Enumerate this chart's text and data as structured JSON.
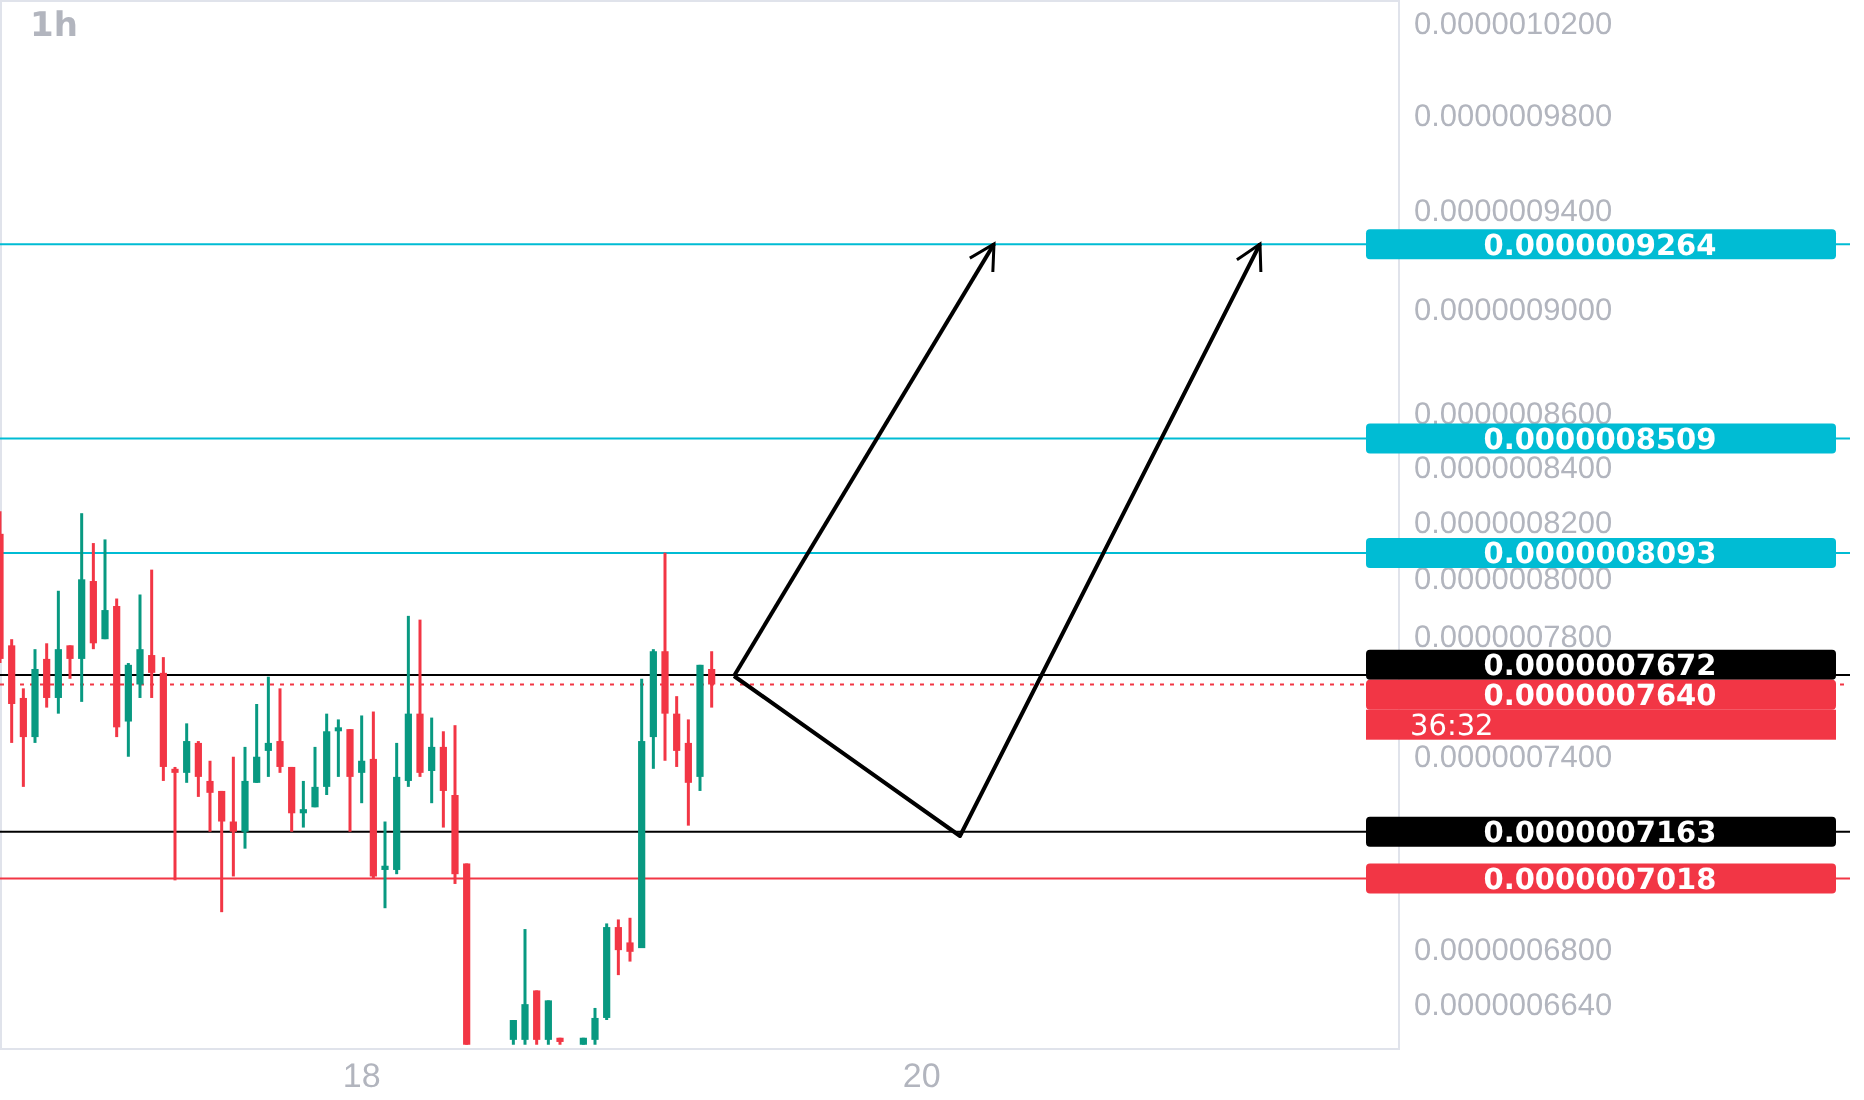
{
  "chart_data": {
    "type": "candlestick",
    "title": "1h",
    "log": true,
    "grid": false,
    "x": [
      16.7083,
      16.75,
      16.7917,
      16.8333,
      16.875,
      16.9167,
      16.9583,
      17,
      17.0417,
      17.0833,
      17.125,
      17.1667,
      17.2083,
      17.25,
      17.2917,
      17.3333,
      17.375,
      17.4167,
      17.4583,
      17.5,
      17.5417,
      17.5833,
      17.625,
      17.6667,
      17.7083,
      17.75,
      17.7917,
      17.8333,
      17.875,
      17.9167,
      17.9583,
      18,
      18.0417,
      18.0833,
      18.125,
      18.1667,
      18.2083,
      18.25,
      18.2917,
      18.3333,
      18.375,
      18.5417,
      18.5833,
      18.625,
      18.6667,
      18.7083,
      18.7917,
      18.8333,
      18.875,
      18.9167,
      18.9583,
      19,
      19.0417,
      19.0833,
      19.125,
      19.1667,
      19.2083,
      19.25
    ],
    "ohlc": [
      [
        8.161e-07,
        8.242e-07,
        7.712e-07,
        7.726e-07
      ],
      [
        7.772e-07,
        7.793e-07,
        7.447e-07,
        7.575e-07
      ],
      [
        7.595e-07,
        7.627e-07,
        7.305e-07,
        7.466e-07
      ],
      [
        7.466e-07,
        7.759e-07,
        7.447e-07,
        7.692e-07
      ],
      [
        7.726e-07,
        7.779e-07,
        7.563e-07,
        7.595e-07
      ],
      [
        7.595e-07,
        7.96e-07,
        7.543e-07,
        7.759e-07
      ],
      [
        7.772e-07,
        7.772e-07,
        7.659e-07,
        7.726e-07
      ],
      [
        7.726e-07,
        8.235e-07,
        7.582e-07,
        8e-07
      ],
      [
        7.994e-07,
        8.128e-07,
        7.759e-07,
        7.779e-07
      ],
      [
        7.793e-07,
        8.141e-07,
        7.793e-07,
        7.893e-07
      ],
      [
        7.907e-07,
        7.933e-07,
        7.466e-07,
        7.498e-07
      ],
      [
        7.517e-07,
        7.712e-07,
        7.402e-07,
        7.706e-07
      ],
      [
        7.64e-07,
        7.947e-07,
        7.595e-07,
        7.759e-07
      ],
      [
        7.739e-07,
        8.034e-07,
        7.595e-07,
        7.679e-07
      ],
      [
        7.679e-07,
        7.732e-07,
        7.324e-07,
        7.369e-07
      ],
      [
        7.363e-07,
        7.369e-07,
        7.012e-07,
        7.35e-07
      ],
      [
        7.35e-07,
        7.511e-07,
        7.318e-07,
        7.453e-07
      ],
      [
        7.447e-07,
        7.453e-07,
        7.273e-07,
        7.337e-07
      ],
      [
        7.324e-07,
        7.389e-07,
        7.163e-07,
        7.286e-07
      ],
      [
        7.292e-07,
        7.292e-07,
        6.915e-07,
        7.195e-07
      ],
      [
        7.195e-07,
        7.402e-07,
        7.024e-07,
        7.163e-07
      ],
      [
        7.163e-07,
        7.434e-07,
        7.11e-07,
        7.324e-07
      ],
      [
        7.318e-07,
        7.575e-07,
        7.318e-07,
        7.402e-07
      ],
      [
        7.421e-07,
        7.666e-07,
        7.337e-07,
        7.447e-07
      ],
      [
        7.453e-07,
        7.627e-07,
        7.35e-07,
        7.369e-07
      ],
      [
        7.369e-07,
        7.369e-07,
        7.163e-07,
        7.221e-07
      ],
      [
        7.221e-07,
        7.324e-07,
        7.176e-07,
        7.234e-07
      ],
      [
        7.24e-07,
        7.434e-07,
        7.24e-07,
        7.305e-07
      ],
      [
        7.305e-07,
        7.543e-07,
        7.279e-07,
        7.485e-07
      ],
      [
        7.485e-07,
        7.524e-07,
        7.337e-07,
        7.498e-07
      ],
      [
        7.492e-07,
        7.492e-07,
        7.163e-07,
        7.337e-07
      ],
      [
        7.35e-07,
        7.537e-07,
        7.253e-07,
        7.389e-07
      ],
      [
        7.395e-07,
        7.55e-07,
        7.018e-07,
        7.024e-07
      ],
      [
        7.044e-07,
        7.195e-07,
        6.927e-07,
        7.057e-07
      ],
      [
        7.044e-07,
        7.447e-07,
        7.031e-07,
        7.337e-07
      ],
      [
        7.324e-07,
        7.873e-07,
        7.305e-07,
        7.543e-07
      ],
      [
        7.543e-07,
        7.86e-07,
        7.337e-07,
        7.35e-07
      ],
      [
        7.356e-07,
        7.53e-07,
        7.253e-07,
        7.434e-07
      ],
      [
        7.434e-07,
        7.485e-07,
        7.176e-07,
        7.292e-07
      ],
      [
        7.279e-07,
        7.505e-07,
        7.001e-07,
        7.031e-07
      ],
      [
        7.064e-07,
        7.064e-07,
        6.525e-07,
        6.525e-07
      ],
      [
        6.539e-07,
        6.596e-07,
        6.525e-07,
        6.596e-07
      ],
      [
        6.539e-07,
        6.864e-07,
        6.525e-07,
        6.642e-07
      ],
      [
        6.682e-07,
        6.682e-07,
        6.525e-07,
        6.539e-07
      ],
      [
        6.539e-07,
        6.653e-07,
        6.525e-07,
        6.653e-07
      ],
      [
        6.545e-07,
        6.545e-07,
        6.525e-07,
        6.533e-07
      ],
      [
        6.525e-07,
        6.545e-07,
        6.525e-07,
        6.545e-07
      ],
      [
        6.539e-07,
        6.631e-07,
        6.525e-07,
        6.602e-07
      ],
      [
        6.602e-07,
        6.881e-07,
        6.596e-07,
        6.87e-07
      ],
      [
        6.87e-07,
        6.893e-07,
        6.727e-07,
        6.801e-07
      ],
      [
        6.824e-07,
        6.898e-07,
        6.767e-07,
        6.796e-07
      ],
      [
        6.807e-07,
        7.659e-07,
        6.807e-07,
        7.453e-07
      ],
      [
        7.466e-07,
        7.759e-07,
        7.363e-07,
        7.752e-07
      ],
      [
        7.752e-07,
        8.094e-07,
        7.389e-07,
        7.543e-07
      ],
      [
        7.543e-07,
        7.601e-07,
        7.369e-07,
        7.421e-07
      ],
      [
        7.447e-07,
        7.524e-07,
        7.182e-07,
        7.318e-07
      ],
      [
        7.337e-07,
        7.706e-07,
        7.292e-07,
        7.706e-07
      ],
      [
        7.692e-07,
        7.752e-07,
        7.563e-07,
        7.64e-07
      ]
    ],
    "colors": [
      "#f23645",
      "#f23645",
      "#f23645",
      "#089981",
      "#f23645",
      "#089981",
      "#f23645",
      "#089981",
      "#f23645",
      "#089981",
      "#f23645",
      "#089981",
      "#089981",
      "#f23645",
      "#f23645",
      "#f23645",
      "#089981",
      "#f23645",
      "#f23645",
      "#f23645",
      "#f23645",
      "#089981",
      "#089981",
      "#089981",
      "#f23645",
      "#f23645",
      "#089981",
      "#089981",
      "#089981",
      "#089981",
      "#f23645",
      "#089981",
      "#f23645",
      "#089981",
      "#089981",
      "#089981",
      "#f23645",
      "#089981",
      "#f23645",
      "#f23645",
      "#f23645",
      "#089981",
      "#089981",
      "#f23645",
      "#089981",
      "#f23645",
      "#089981",
      "#089981",
      "#089981",
      "#f23645",
      "#f23645",
      "#089981",
      "#089981",
      "#f23645",
      "#f23645",
      "#f23645",
      "#089981",
      "#f23645"
    ],
    "xlim": [
      16.7083,
      21.7083
    ],
    "xticks": [
      18,
      20
    ],
    "ylim": [
      6.51e-07,
      1.031e-06
    ],
    "yticks": [
      {
        "value": 1.02e-06,
        "label": "0.0000010200"
      },
      {
        "value": 9.8e-07,
        "label": "0.0000009800"
      },
      {
        "value": 9.4e-07,
        "label": "0.0000009400"
      },
      {
        "value": 9e-07,
        "label": "0.0000009000"
      },
      {
        "value": 8.6e-07,
        "label": "0.0000008600"
      },
      {
        "value": 8.4e-07,
        "label": "0.0000008400"
      },
      {
        "value": 8.2e-07,
        "label": "0.0000008200"
      },
      {
        "value": 8e-07,
        "label": "0.0000008000"
      },
      {
        "value": 7.8e-07,
        "label": "0.0000007800"
      },
      {
        "value": 7.4e-07,
        "label": "0.0000007400"
      },
      {
        "value": 6.8e-07,
        "label": "0.0000006800"
      },
      {
        "value": 6.64e-07,
        "label": "0.0000006640"
      }
    ],
    "ref_lines": [
      {
        "axis": "y",
        "value": 9.264e-07,
        "label": "0.0000009264",
        "color": "#00bcd4"
      },
      {
        "axis": "y",
        "value": 8.509e-07,
        "label": "0.0000008509",
        "color": "#00bcd4"
      },
      {
        "axis": "y",
        "value": 8.093e-07,
        "label": "0.0000008093",
        "color": "#00bcd4"
      },
      {
        "axis": "y",
        "value": 7.672e-07,
        "label": "0.0000007672",
        "color": "#000000"
      },
      {
        "axis": "y",
        "value": 7.64e-07,
        "label": "0.0000007640",
        "color": "#f23645",
        "line_style": "dotted"
      },
      {
        "axis": "y",
        "value": 7.163e-07,
        "label": "0.0000007163",
        "color": "#000000"
      },
      {
        "axis": "y",
        "value": 7.018e-07,
        "label": "0.0000007018",
        "color": "#f23645"
      }
    ],
    "annotations": [
      "36:32"
    ]
  }
}
